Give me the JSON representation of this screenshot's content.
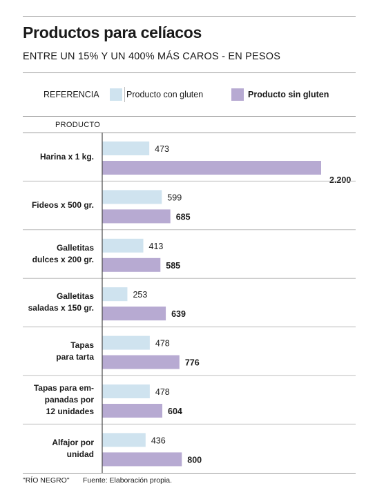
{
  "header": {
    "title": "Productos para celíacos",
    "subtitle": "ENTRE UN 15% Y UN 400% MÁS CAROS - EN PESOS"
  },
  "legend": {
    "label": "REFERENCIA",
    "items": [
      {
        "text": "Producto con gluten",
        "color": "#cfe3ef"
      },
      {
        "text": "Producto sin gluten",
        "color": "#b7aad2"
      }
    ]
  },
  "column_header": "PRODUCTO",
  "chart_data": {
    "type": "bar",
    "orientation": "horizontal",
    "categories": [
      "Harina x 1 kg.",
      "Fideos x 500 gr.",
      "Galletitas dulces x 200 gr.",
      "Galletitas saladas x 150 gr.",
      "Tapas para tarta",
      "Tapas para em-panadas por 12 unidades",
      "Alfajor por unidad"
    ],
    "category_lines": [
      [
        "Harina x 1 kg."
      ],
      [
        "Fideos x 500 gr."
      ],
      [
        "Galletitas",
        "dulces x 200 gr."
      ],
      [
        "Galletitas",
        "saladas x 150 gr."
      ],
      [
        "Tapas",
        "para tarta"
      ],
      [
        "Tapas para em-",
        "panadas por",
        "12 unidades"
      ],
      [
        "Alfajor por",
        "unidad"
      ]
    ],
    "series": [
      {
        "name": "Producto con gluten",
        "color": "#cfe3ef",
        "values": [
          473,
          599,
          413,
          253,
          478,
          478,
          436
        ],
        "labels": [
          "473",
          "599",
          "413",
          "253",
          "478",
          "478",
          "436"
        ]
      },
      {
        "name": "Producto sin gluten",
        "color": "#b7aad2",
        "values": [
          2200,
          685,
          585,
          639,
          776,
          604,
          800
        ],
        "labels": [
          "2.200",
          "685",
          "585",
          "639",
          "776",
          "604",
          "800"
        ]
      }
    ],
    "xlim": [
      0,
      2200
    ],
    "grid": false,
    "legend_position": "top"
  },
  "footer": {
    "source": "\"RÍO NEGRO\"",
    "note": "Fuente: Elaboración propia."
  }
}
